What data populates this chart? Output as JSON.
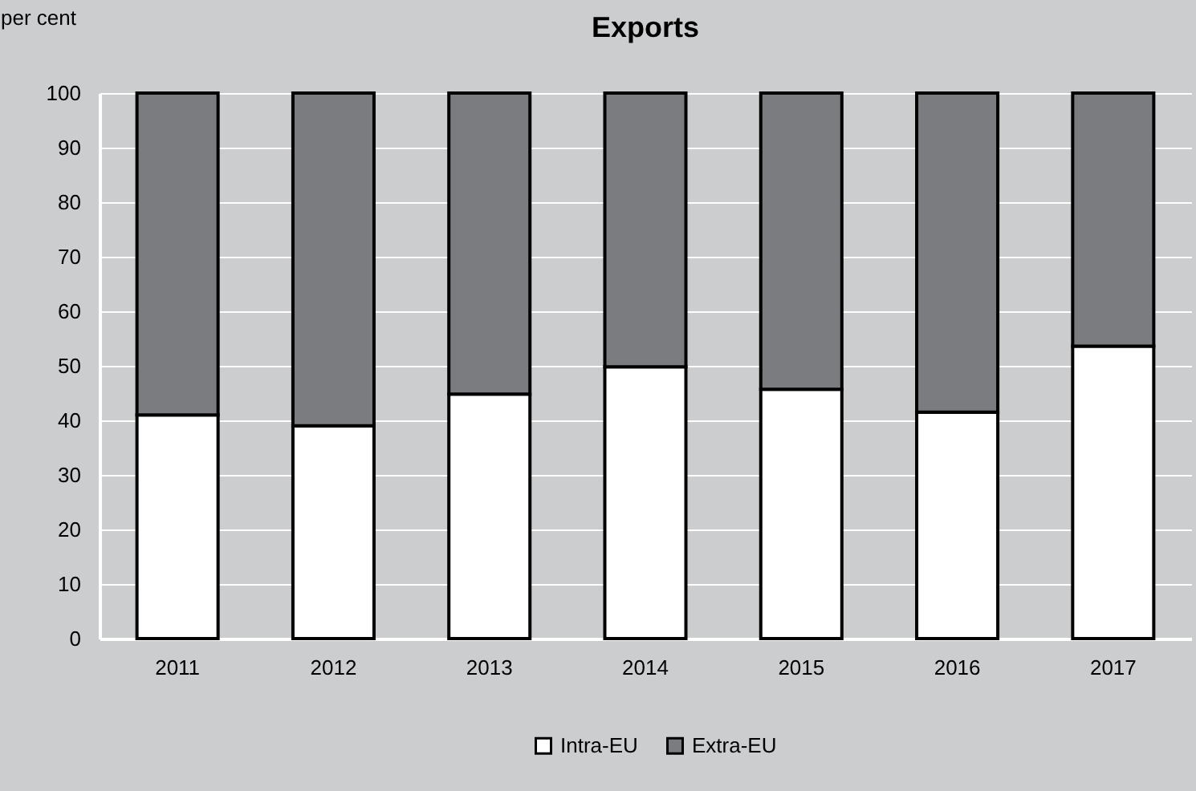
{
  "chart_data": {
    "type": "bar",
    "title": "Exports",
    "ylabel": "per cent",
    "categories": [
      "2011",
      "2012",
      "2013",
      "2014",
      "2015",
      "2016",
      "2017"
    ],
    "stacked": true,
    "series": [
      {
        "name": "Intra-EU",
        "color": "#ffffff",
        "values": [
          41,
          39,
          44.8,
          49.8,
          45.7,
          41.5,
          53.6
        ]
      },
      {
        "name": "Extra-EU",
        "color": "#7b7c80",
        "values": [
          59,
          61,
          55.2,
          50.2,
          54.3,
          58.5,
          46.4
        ]
      }
    ],
    "ylim": [
      0,
      100
    ],
    "yticks": [
      0,
      10,
      20,
      30,
      40,
      50,
      60,
      70,
      80,
      90,
      100
    ],
    "grid": "y",
    "legend": "bottom"
  }
}
